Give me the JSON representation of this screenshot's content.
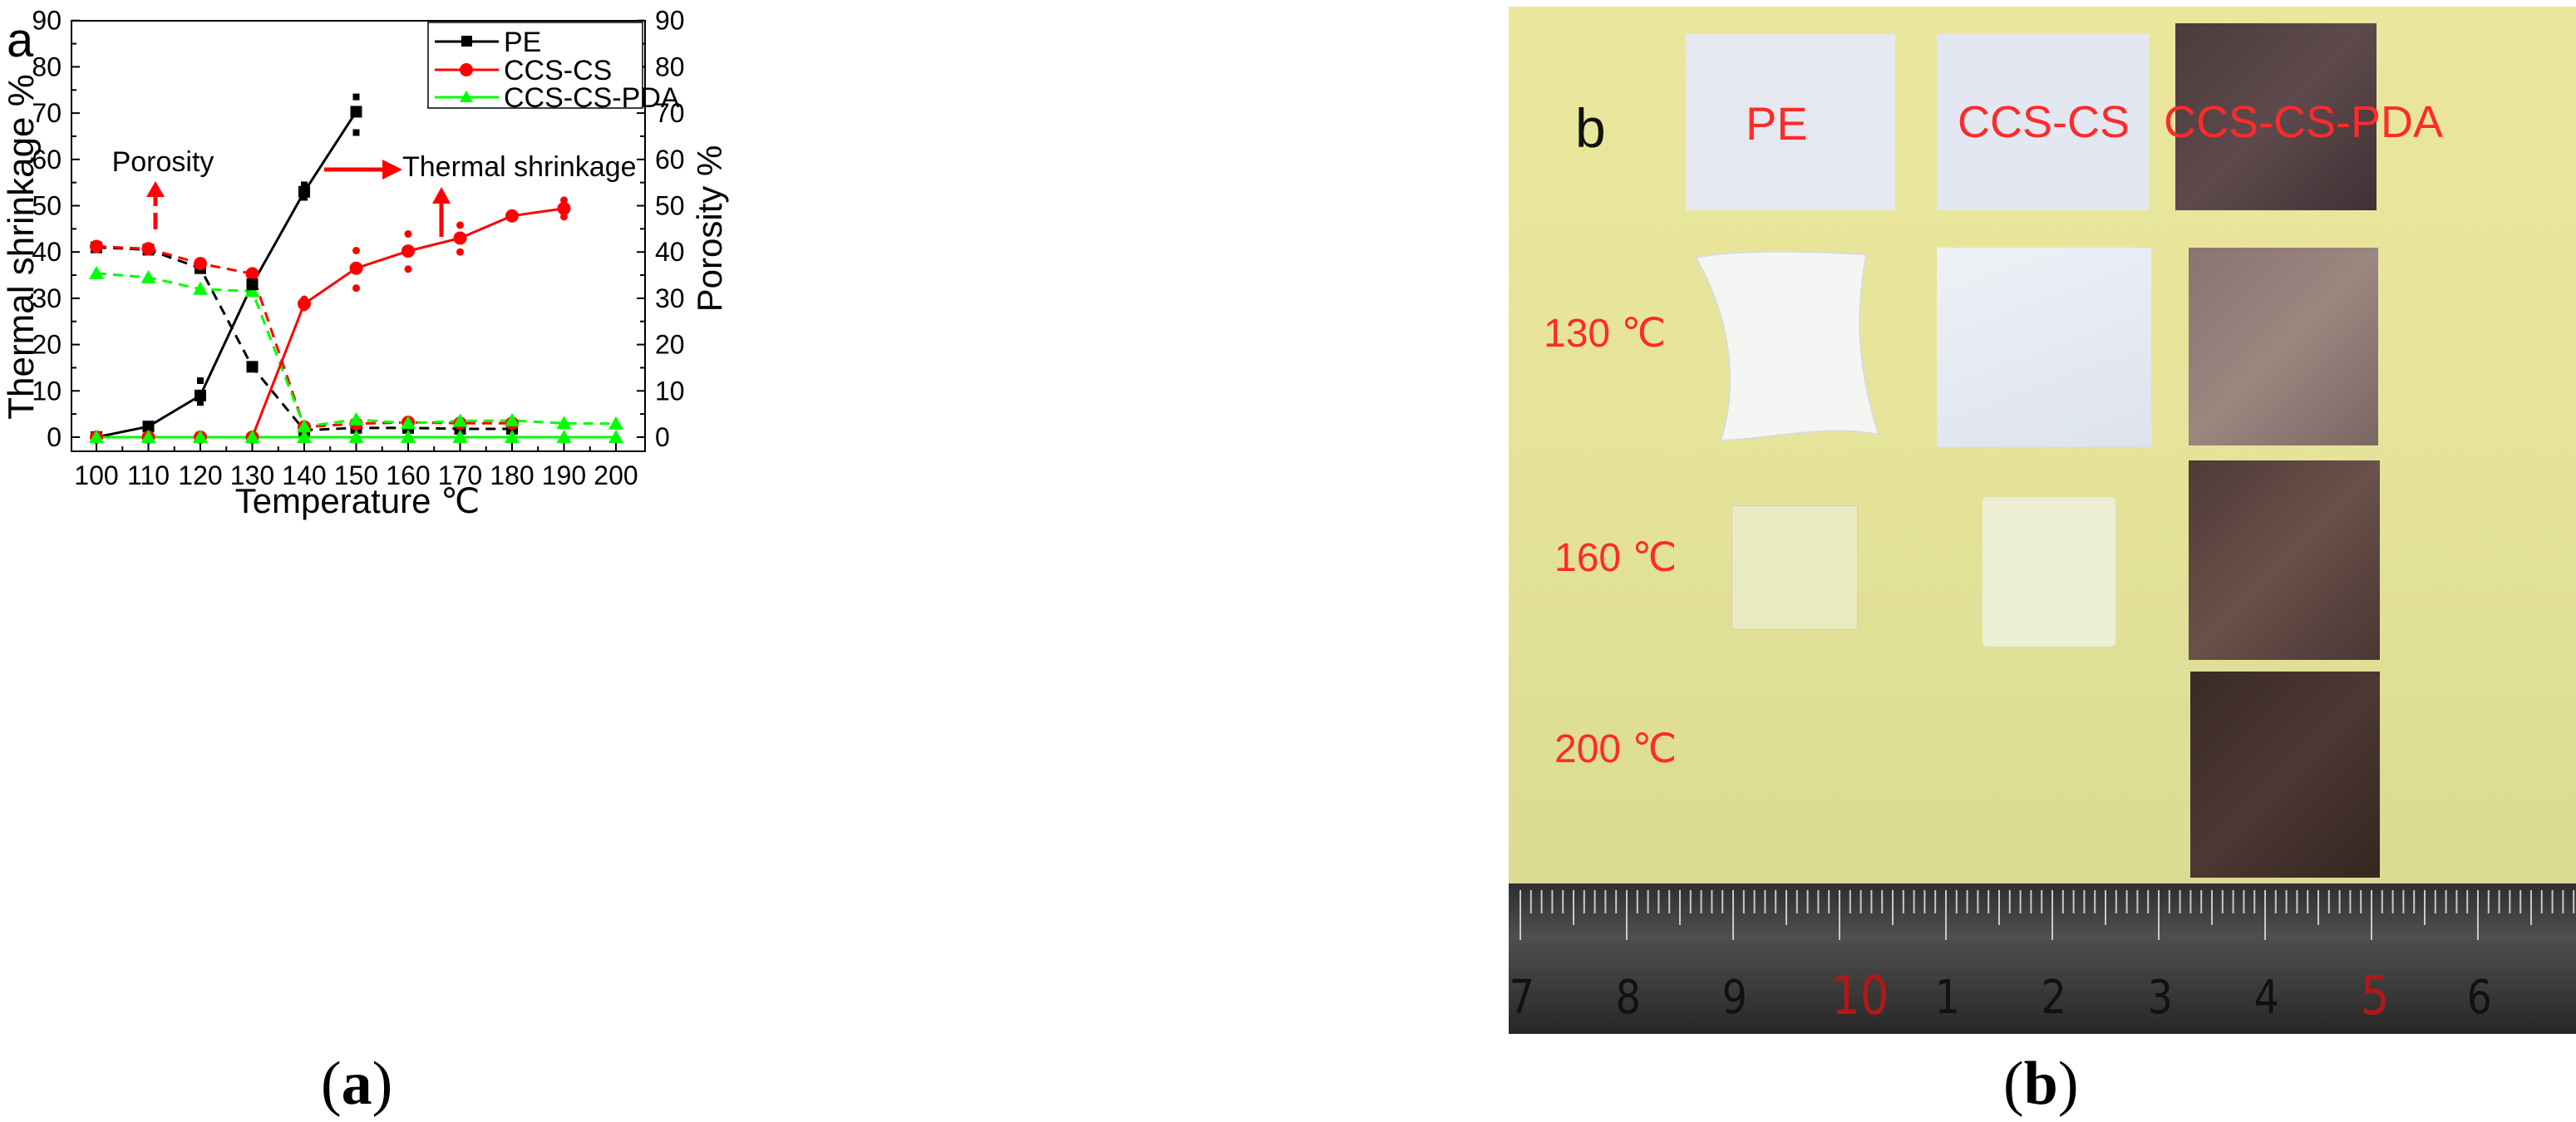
{
  "chart_data": {
    "type": "line",
    "panel_letter": "a",
    "xlabel": "Temperature ℃",
    "ylabel_left": "Thermal shrinkage %",
    "ylabel_right": "Porosity %",
    "xlim": [
      95,
      205
    ],
    "ylim": [
      -2,
      90
    ],
    "x_ticks": [
      "100",
      "110",
      "120",
      "130",
      "140",
      "150",
      "160",
      "170",
      "180",
      "190",
      "200"
    ],
    "y_ticks": [
      "0",
      "10",
      "20",
      "30",
      "40",
      "50",
      "60",
      "70",
      "80",
      "90"
    ],
    "shrinkage_series": [
      {
        "name": "PE",
        "color": "#000000",
        "marker": "square",
        "x": [
          100,
          110,
          120,
          130,
          140,
          150
        ],
        "y": [
          0,
          2.3,
          9,
          33,
          53,
          70.3
        ]
      },
      {
        "name": "CCS-CS",
        "color": "#ff0000",
        "marker": "circle",
        "x": [
          100,
          110,
          120,
          130,
          140,
          150,
          160,
          170,
          180,
          190
        ],
        "y": [
          0,
          0,
          0,
          0,
          28.8,
          36.5,
          40.2,
          43,
          47.8,
          49.4
        ]
      },
      {
        "name": "CCS-CS-PDA",
        "color": "#00ff00",
        "marker": "triangle",
        "x": [
          100,
          110,
          120,
          130,
          140,
          150,
          160,
          170,
          180,
          190,
          200
        ],
        "y": [
          0,
          0,
          0,
          0,
          0,
          0,
          0,
          0,
          0,
          0,
          0
        ]
      }
    ],
    "porosity_series": [
      {
        "name": "PE",
        "color": "#000000",
        "marker": "square",
        "x": [
          100,
          110,
          120,
          130,
          140,
          150,
          160,
          170,
          180
        ],
        "y": [
          41,
          40.5,
          36.5,
          15.2,
          1.5,
          2,
          2,
          1.8,
          1.8
        ]
      },
      {
        "name": "CCS-CS",
        "color": "#ff0000",
        "marker": "circle",
        "x": [
          100,
          110,
          120,
          130,
          140,
          150,
          160,
          170,
          180
        ],
        "y": [
          41.2,
          40.7,
          37.5,
          35.3,
          2.2,
          2.9,
          3.2,
          3,
          3
        ]
      },
      {
        "name": "CCS-CS-PDA",
        "color": "#00ff00",
        "marker": "triangle",
        "x": [
          100,
          110,
          120,
          130,
          140,
          150,
          160,
          170,
          180,
          190,
          200
        ],
        "y": [
          35.4,
          34.5,
          32,
          31.5,
          2.3,
          3.8,
          3,
          3.5,
          3.6,
          3,
          2.9
        ]
      }
    ],
    "error_points": [
      {
        "color": "#000000",
        "x": 120,
        "y": [
          7.5,
          12.2
        ]
      },
      {
        "color": "#000000",
        "x": 140,
        "y": [
          51.8,
          54.5
        ]
      },
      {
        "color": "#000000",
        "x": 150,
        "y": [
          65.8,
          73.5
        ]
      },
      {
        "color": "#ff0000",
        "x": 140,
        "y": [
          28,
          29.8
        ]
      },
      {
        "color": "#ff0000",
        "x": 150,
        "y": [
          32.2,
          40.3
        ]
      },
      {
        "color": "#ff0000",
        "x": 160,
        "y": [
          36.3,
          43.9
        ]
      },
      {
        "color": "#ff0000",
        "x": 170,
        "y": [
          40,
          45.8
        ]
      },
      {
        "color": "#ff0000",
        "x": 190,
        "y": [
          47.6,
          51.2
        ]
      }
    ],
    "legend": [
      "PE",
      "CCS-CS",
      "CCS-CS-PDA"
    ],
    "legend_position": "top-right",
    "annotations": {
      "porosity": "Porosity",
      "thermal": "Thermal shrinkage"
    }
  },
  "photo": {
    "panel_letter": "b",
    "column_labels": [
      "PE",
      "CCS-CS",
      "CCS-CS-PDA"
    ],
    "row_labels": [
      "130 ℃",
      "160 ℃",
      "200 ℃"
    ],
    "ruler_numbers": [
      "7",
      "8",
      "9",
      "10",
      "1",
      "2",
      "3",
      "4",
      "5",
      "6"
    ],
    "label_color": "#ff1a1a"
  },
  "captions": {
    "a": "a",
    "b": "b"
  }
}
